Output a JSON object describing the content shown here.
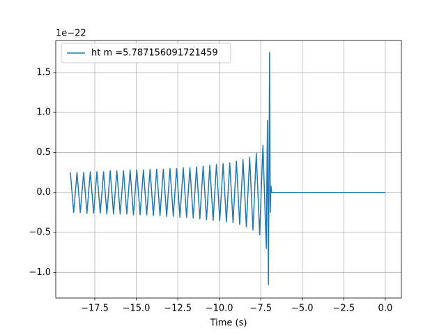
{
  "chart_data": {
    "type": "line",
    "offset_label": "1e−22",
    "xlabel": "Time (s)",
    "x": [
      -18.97,
      -18.77,
      -18.57,
      -18.37,
      -18.17,
      -17.97,
      -17.77,
      -17.57,
      -17.37,
      -17.17,
      -16.97,
      -16.77,
      -16.57,
      -16.37,
      -16.17,
      -15.97,
      -15.77,
      -15.57,
      -15.37,
      -15.17,
      -14.97,
      -14.77,
      -14.57,
      -14.37,
      -14.17,
      -13.97,
      -13.77,
      -13.57,
      -13.37,
      -13.17,
      -12.97,
      -12.77,
      -12.57,
      -12.37,
      -12.17,
      -11.97,
      -11.77,
      -11.57,
      -11.37,
      -11.17,
      -10.97,
      -10.77,
      -10.57,
      -10.37,
      -10.17,
      -9.97,
      -9.77,
      -9.57,
      -9.37,
      -9.17,
      -8.97,
      -8.77,
      -8.57,
      -8.37,
      -8.17,
      -7.97,
      -7.77,
      -7.57,
      -7.37,
      -7.17,
      -7.1,
      -7.04,
      -6.97,
      -6.93,
      -6.89,
      -6.84,
      0
    ],
    "series": [
      {
        "name": "ht m =5.787156091721459",
        "color": "#1f77b4",
        "values": [
          0.25,
          -0.25,
          0.25,
          -0.25,
          0.25,
          -0.26,
          0.26,
          -0.26,
          0.26,
          -0.26,
          0.26,
          -0.27,
          0.27,
          -0.27,
          0.27,
          -0.27,
          0.27,
          -0.27,
          0.28,
          -0.28,
          0.28,
          -0.28,
          0.28,
          -0.28,
          0.29,
          -0.29,
          0.29,
          -0.29,
          0.29,
          -0.3,
          0.3,
          -0.3,
          0.3,
          -0.31,
          0.31,
          -0.31,
          0.31,
          -0.32,
          0.32,
          -0.33,
          0.33,
          -0.34,
          0.34,
          -0.35,
          0.35,
          -0.35,
          0.36,
          -0.37,
          0.37,
          -0.38,
          0.39,
          -0.4,
          0.41,
          -0.43,
          0.44,
          -0.47,
          0.49,
          -0.53,
          0.59,
          -0.7,
          0.9,
          -1.15,
          1.75,
          -0.25,
          0.08,
          0,
          0
        ]
      }
    ],
    "xlim": [
      -19.85,
      0.97
    ],
    "ylim": [
      -1.32,
      1.9
    ],
    "xticks": [
      {
        "value": -17.5,
        "label": "−17.5"
      },
      {
        "value": -15,
        "label": "−15.0"
      },
      {
        "value": -12.5,
        "label": "−12.5"
      },
      {
        "value": -10,
        "label": "−10.0"
      },
      {
        "value": -7.5,
        "label": "−7.5"
      },
      {
        "value": -5,
        "label": "−5.0"
      },
      {
        "value": -2.5,
        "label": "−2.5"
      },
      {
        "value": 0,
        "label": "0.0"
      }
    ],
    "yticks": [
      {
        "value": -1,
        "label": "−1.0"
      },
      {
        "value": -0.5,
        "label": "−0.5"
      },
      {
        "value": 0,
        "label": "0.0"
      },
      0.5,
      {
        "value": 1,
        "label": "1.0"
      },
      1.5
    ],
    "grid": true,
    "legend": "upper left"
  }
}
